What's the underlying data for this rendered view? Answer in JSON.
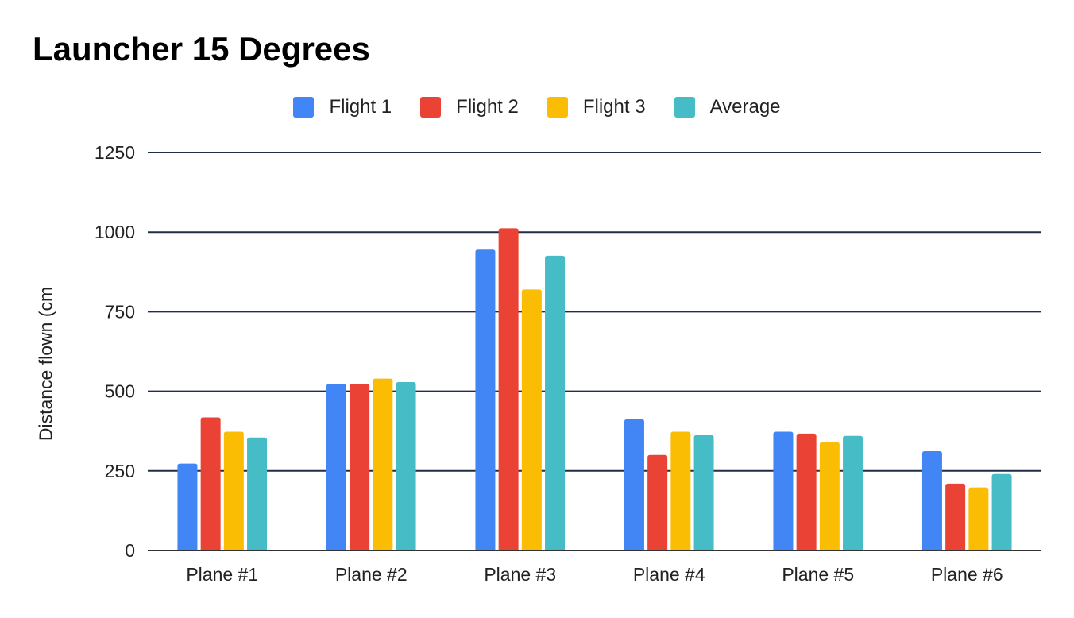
{
  "chart_data": {
    "type": "bar",
    "title": "Launcher 15 Degrees",
    "xlabel": "",
    "ylabel": "Distance flown (cm",
    "categories": [
      "Plane #1",
      "Plane #2",
      "Plane #3",
      "Plane #4",
      "Plane #5",
      "Plane #6"
    ],
    "series": [
      {
        "name": "Flight 1",
        "color": "#4285F4",
        "values": [
          273,
          523,
          945,
          412,
          373,
          312
        ]
      },
      {
        "name": "Flight 2",
        "color": "#EA4335",
        "values": [
          418,
          523,
          1012,
          300,
          367,
          210
        ]
      },
      {
        "name": "Flight 3",
        "color": "#FBBC04",
        "values": [
          373,
          540,
          820,
          373,
          340,
          198
        ]
      },
      {
        "name": "Average",
        "color": "#46BDC6",
        "values": [
          355,
          529,
          926,
          362,
          360,
          240
        ]
      }
    ],
    "ylim": [
      0,
      1250
    ],
    "yticks": [
      0,
      250,
      500,
      750,
      1000,
      1250
    ],
    "grid": true,
    "legend_position": "top"
  }
}
